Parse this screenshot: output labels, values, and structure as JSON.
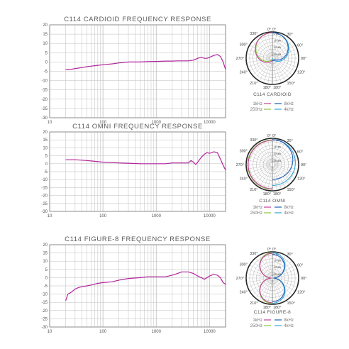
{
  "chart_data": [
    {
      "type": "line",
      "title": "C114 CARDIOID FREQUENCY RESPONSE",
      "xscale": "log",
      "xlim": [
        10,
        20000
      ],
      "ylim": [
        -30,
        20
      ],
      "x_ticks": [
        "10",
        "100",
        "1000",
        "10000"
      ],
      "y_ticks": [
        "20",
        "15",
        "10",
        "5",
        "0",
        "-5",
        "-10",
        "-15",
        "-20",
        "-25",
        "-30"
      ],
      "grid": true,
      "color": "#b0249a",
      "series": [
        {
          "x": [
            20,
            25,
            30,
            40,
            50,
            70,
            100,
            150,
            200,
            300,
            500,
            700,
            1000,
            1500,
            2000,
            2500,
            3000,
            4000,
            5000,
            6000,
            7000,
            8000,
            9000,
            10000,
            12000,
            14000,
            16000,
            18000,
            20000
          ],
          "y": [
            -4,
            -4,
            -3.5,
            -3,
            -2.5,
            -2,
            -1.5,
            -1,
            -0.5,
            0,
            0,
            0.2,
            0.3,
            0.5,
            0.5,
            0.6,
            0.6,
            0.6,
            1,
            2,
            2.5,
            2,
            2,
            2.5,
            3.5,
            4,
            3,
            0,
            -4
          ]
        }
      ]
    },
    {
      "type": "line",
      "title": "C114 OMNI FREQUENCY RESPONSE",
      "xscale": "log",
      "xlim": [
        10,
        20000
      ],
      "ylim": [
        -30,
        20
      ],
      "x_ticks": [
        "10",
        "100",
        "1000",
        "10000"
      ],
      "y_ticks": [
        "20",
        "15",
        "10",
        "5",
        "0",
        "-5",
        "-10",
        "-15",
        "-20",
        "-25",
        "-30"
      ],
      "grid": true,
      "color": "#b0249a",
      "series": [
        {
          "x": [
            20,
            30,
            50,
            70,
            100,
            200,
            300,
            500,
            700,
            1000,
            1500,
            2000,
            2500,
            3000,
            4000,
            4500,
            5000,
            5500,
            6000,
            7000,
            8000,
            9000,
            10000,
            12000,
            14000,
            16000,
            18000,
            20000
          ],
          "y": [
            2.5,
            2.5,
            2,
            1.5,
            1,
            0.5,
            0.3,
            0,
            0,
            0,
            0,
            0.5,
            0.5,
            0.5,
            0.5,
            2,
            1,
            -0.5,
            1,
            4,
            6,
            7,
            6.5,
            7.5,
            7,
            3,
            -1,
            -4
          ]
        }
      ]
    },
    {
      "type": "line",
      "title": "C114 FIGURE-8 FREQUENCY RESPONSE",
      "xscale": "log",
      "xlim": [
        10,
        20000
      ],
      "ylim": [
        -30,
        20
      ],
      "x_ticks": [
        "10",
        "100",
        "1000",
        "10000"
      ],
      "y_ticks": [
        "20",
        "15",
        "10",
        "5",
        "0",
        "-5",
        "-10",
        "-15",
        "-20",
        "-25",
        "-30"
      ],
      "grid": true,
      "color": "#b0249a",
      "series": [
        {
          "x": [
            20,
            22,
            25,
            30,
            35,
            40,
            50,
            60,
            80,
            100,
            150,
            200,
            300,
            500,
            700,
            1000,
            1500,
            2000,
            2500,
            3000,
            4000,
            5000,
            6000,
            7000,
            8000,
            9000,
            10000,
            12000,
            14000,
            16000,
            18000,
            20000
          ],
          "y": [
            -14,
            -10,
            -9,
            -7,
            -6,
            -5.5,
            -5,
            -4.5,
            -3.5,
            -3,
            -2.5,
            -1.5,
            -0.5,
            0,
            0.5,
            0.5,
            0.5,
            1.5,
            2.5,
            3.5,
            3.5,
            2.5,
            1,
            0,
            -1,
            0,
            1,
            2,
            1.5,
            0,
            -3,
            -4
          ]
        }
      ]
    }
  ],
  "polar_plots": [
    {
      "label": "C114 CARDIOID",
      "angles": [
        "0°",
        "30°",
        "60°",
        "90°",
        "120°",
        "150°",
        "180°",
        "210°",
        "240°",
        "270°",
        "300°",
        "330°"
      ],
      "db_labels": [
        "0 dB",
        "10 dB",
        "20 dB",
        "30 dB"
      ],
      "legend": [
        {
          "label": "1kHz",
          "color": "#c2419b"
        },
        {
          "label": "8kHz",
          "color": "#1f5db5"
        },
        {
          "label": "250Hz",
          "color": "#8cc63f"
        },
        {
          "label": "4kHz",
          "color": "#33a6dc"
        }
      ]
    },
    {
      "label": "C114 OMNI",
      "angles": [
        "0°",
        "30°",
        "60°",
        "90°",
        "120°",
        "150°",
        "180°",
        "210°",
        "240°",
        "270°",
        "300°",
        "330°"
      ],
      "db_labels": [
        "0 dB",
        "10 dB",
        "20 dB",
        "30 dB"
      ],
      "legend": [
        {
          "label": "1kHz",
          "color": "#c2419b"
        },
        {
          "label": "8kHz",
          "color": "#1f5db5"
        },
        {
          "label": "250Hz",
          "color": "#8cc63f"
        },
        {
          "label": "4kHz",
          "color": "#33a6dc"
        }
      ]
    },
    {
      "label": "C114 FIGURE-8",
      "angles": [
        "0°",
        "30°",
        "60°",
        "90°",
        "120°",
        "150°",
        "180°",
        "210°",
        "240°",
        "270°",
        "300°",
        "330°"
      ],
      "db_labels": [
        "0 dB",
        "10 dB",
        "20 dB",
        "30 dB"
      ],
      "legend": [
        {
          "label": "1kHz",
          "color": "#c2419b"
        },
        {
          "label": "8kHz",
          "color": "#1f5db5"
        },
        {
          "label": "250Hz",
          "color": "#8cc63f"
        },
        {
          "label": "4kHz",
          "color": "#33a6dc"
        }
      ]
    }
  ],
  "colors": {
    "grid": "#bdbdbd",
    "frame": "#777777",
    "curve": "#b0249a"
  }
}
